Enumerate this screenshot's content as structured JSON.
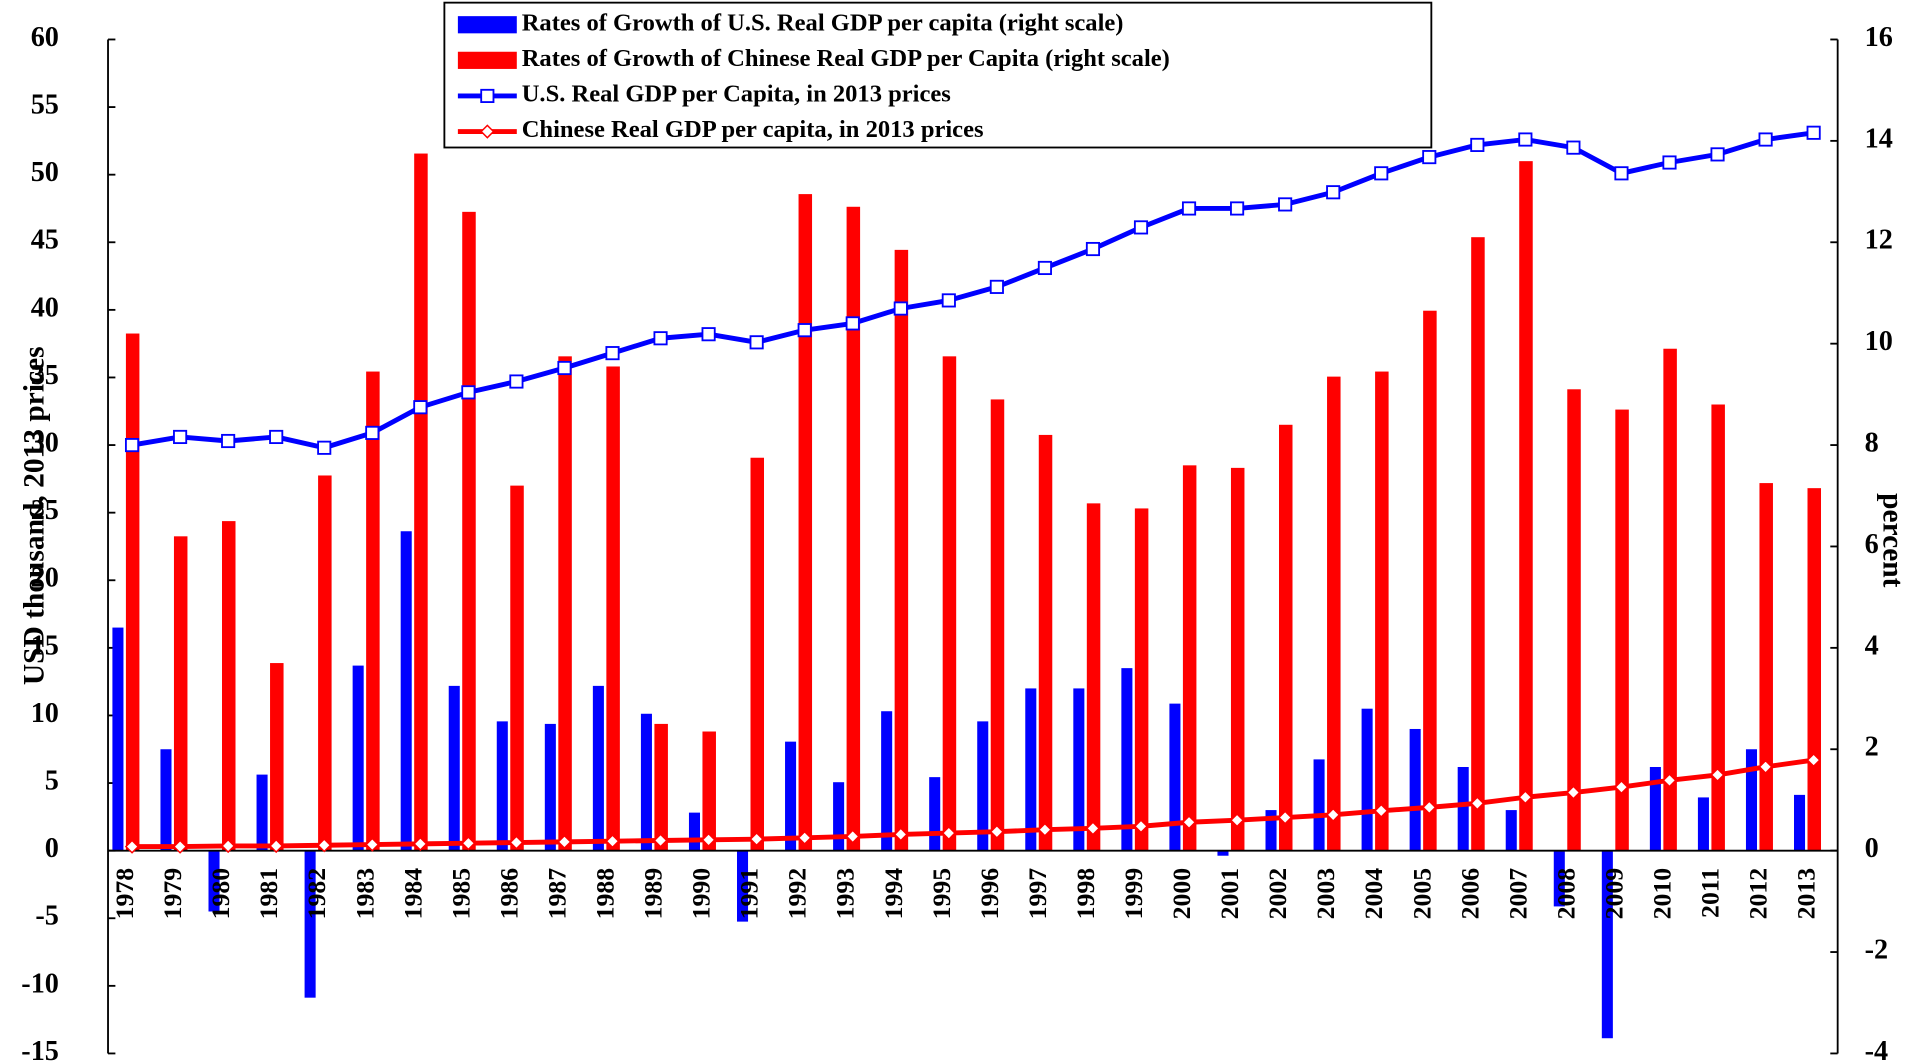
{
  "chart_data": {
    "type": "bar",
    "categories": [
      "1978",
      "1979",
      "1980",
      "1981",
      "1982",
      "1983",
      "1984",
      "1985",
      "1986",
      "1987",
      "1988",
      "1989",
      "1990",
      "1991",
      "1992",
      "1993",
      "1994",
      "1995",
      "1996",
      "1997",
      "1998",
      "1999",
      "2000",
      "2001",
      "2002",
      "2003",
      "2004",
      "2005",
      "2006",
      "2007",
      "2008",
      "2009",
      "2010",
      "2011",
      "2012",
      "2013"
    ],
    "y_label": "USD thousand, 2013 prices",
    "y2_label": "percent",
    "ylim": [
      -15,
      60
    ],
    "yticks": [
      -15,
      -10,
      -5,
      0,
      5,
      10,
      15,
      20,
      25,
      30,
      35,
      40,
      45,
      50,
      55,
      60
    ],
    "y2lim": [
      -4,
      16
    ],
    "y2ticks": [
      -4,
      -2,
      0,
      2,
      4,
      6,
      8,
      10,
      12,
      14,
      16
    ],
    "legend": "top",
    "series": [
      {
        "name": "Rates of Growth of U.S. Real GDP per capita (right scale)",
        "type": "bar",
        "axis": "y2",
        "color": "#0000ff",
        "values": [
          4.4,
          2.0,
          -1.2,
          1.5,
          -2.9,
          3.65,
          6.3,
          3.25,
          2.55,
          2.5,
          3.25,
          2.7,
          0.75,
          -1.4,
          2.15,
          1.35,
          2.75,
          1.45,
          2.55,
          3.2,
          3.2,
          3.6,
          2.9,
          -0.1,
          0.8,
          1.8,
          2.8,
          2.4,
          1.65,
          0.8,
          -1.1,
          -3.7,
          1.65,
          1.05,
          2.0,
          1.1
        ]
      },
      {
        "name": "Rates of Growth of Chinese Real GDP per Capita (right scale)",
        "type": "bar",
        "axis": "y2",
        "color": "#ff0000",
        "values": [
          10.2,
          6.2,
          6.5,
          3.7,
          7.4,
          9.45,
          13.75,
          12.6,
          7.2,
          9.75,
          9.55,
          2.5,
          2.35,
          7.75,
          12.95,
          12.7,
          11.85,
          9.75,
          8.9,
          8.2,
          6.85,
          6.75,
          7.6,
          7.55,
          8.4,
          9.35,
          9.45,
          10.65,
          12.1,
          13.6,
          9.1,
          8.7,
          9.9,
          8.8,
          7.25,
          7.15
        ]
      },
      {
        "name": "U.S. Real GDP per Capita, in 2013 prices",
        "type": "line",
        "marker": "square",
        "color": "#0000ff",
        "values": [
          30.0,
          30.6,
          30.3,
          30.6,
          29.8,
          30.9,
          32.8,
          33.9,
          34.7,
          35.7,
          36.8,
          37.9,
          38.2,
          37.6,
          38.5,
          39.0,
          40.1,
          40.7,
          41.7,
          43.1,
          44.5,
          46.1,
          47.5,
          47.5,
          47.8,
          48.7,
          50.1,
          51.3,
          52.2,
          52.6,
          52.0,
          50.1,
          50.9,
          51.5,
          52.6,
          53.1
        ]
      },
      {
        "name": "Chinese Real GDP per capita, in 2013 prices",
        "type": "line",
        "marker": "diamond",
        "color": "#ff0000",
        "values": [
          0.3,
          0.3,
          0.35,
          0.35,
          0.4,
          0.45,
          0.5,
          0.55,
          0.6,
          0.65,
          0.7,
          0.75,
          0.8,
          0.85,
          0.95,
          1.05,
          1.2,
          1.3,
          1.4,
          1.55,
          1.65,
          1.8,
          2.1,
          2.25,
          2.45,
          2.65,
          2.95,
          3.2,
          3.5,
          3.95,
          4.3,
          4.7,
          5.2,
          5.6,
          6.2,
          6.7
        ]
      }
    ]
  }
}
